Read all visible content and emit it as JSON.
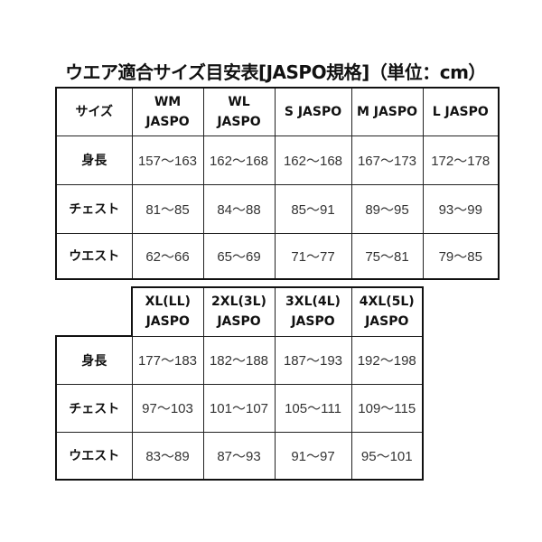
{
  "title": "ウエア適合サイズ目安表[JASPO規格]（単位：cm）",
  "table1": {
    "corner": "サイズ",
    "headers": [
      {
        "l1": "WM",
        "l2": "JASPO"
      },
      {
        "l1": "WL",
        "l2": "JASPO"
      },
      {
        "l1": "S JASPO",
        "l2": ""
      },
      {
        "l1": "M JASPO",
        "l2": ""
      },
      {
        "l1": "L JASPO",
        "l2": ""
      }
    ],
    "rows": [
      {
        "label": "身長",
        "values": [
          "157〜163",
          "162〜168",
          "162〜168",
          "167〜173",
          "172〜178"
        ]
      },
      {
        "label": "チェスト",
        "values": [
          "81〜85",
          "84〜88",
          "85〜91",
          "89〜95",
          "93〜99"
        ]
      },
      {
        "label": "ウエスト",
        "values": [
          "62〜66",
          "65〜69",
          "71〜77",
          "75〜81",
          "79〜85"
        ]
      }
    ]
  },
  "table2": {
    "headers": [
      {
        "l1": "XL(LL)",
        "l2": "JASPO"
      },
      {
        "l1": "2XL(3L)",
        "l2": "JASPO"
      },
      {
        "l1": "3XL(4L)",
        "l2": "JASPO"
      },
      {
        "l1": "4XL(5L)",
        "l2": "JASPO"
      }
    ],
    "rows": [
      {
        "label": "身長",
        "values": [
          "177〜183",
          "182〜188",
          "187〜193",
          "192〜198"
        ]
      },
      {
        "label": "チェスト",
        "values": [
          "97〜103",
          "101〜107",
          "105〜111",
          "109〜115"
        ]
      },
      {
        "label": "ウエスト",
        "values": [
          "83〜89",
          "87〜93",
          "91〜97",
          "95〜101"
        ]
      }
    ]
  }
}
